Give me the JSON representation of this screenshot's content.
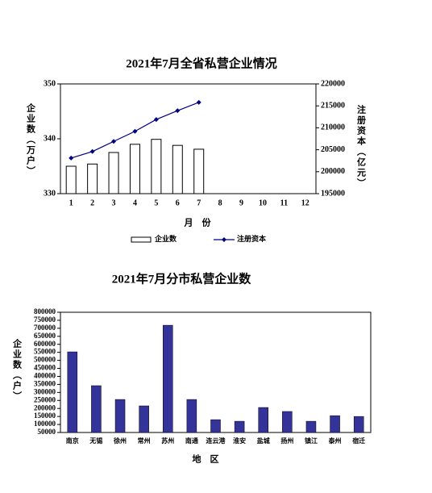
{
  "chart_data": [
    {
      "type": "bar_line",
      "title": "2021年7月全省私营企业情况",
      "categories": [
        "1",
        "2",
        "3",
        "4",
        "5",
        "6",
        "7",
        "8",
        "9",
        "10",
        "11",
        "12"
      ],
      "xlabel": "月　份",
      "ylabel": "企业数（万户）",
      "y2label": "注册资本（亿元）",
      "series": [
        {
          "name": "企业数",
          "type": "bar",
          "color": "#ffffff",
          "values": [
            335.0,
            335.4,
            337.5,
            339.0,
            339.9,
            338.8,
            338.1,
            null,
            null,
            null,
            null,
            null
          ]
        },
        {
          "name": "注册资本",
          "type": "line",
          "axis": "y2",
          "color": "#000080",
          "values": [
            203100,
            204600,
            206900,
            209200,
            211900,
            213900,
            215800,
            null,
            null,
            null,
            null,
            null
          ]
        }
      ],
      "ylim": [
        330,
        350
      ],
      "yticks": [
        330,
        340,
        350
      ],
      "y2lim": [
        195000,
        220000
      ],
      "y2ticks": [
        195000,
        200000,
        205000,
        210000,
        215000,
        220000
      ]
    },
    {
      "type": "bar",
      "title": "2021年7月分市私营企业数",
      "categories": [
        "南京",
        "无锡",
        "徐州",
        "常州",
        "苏州",
        "南通",
        "连云港",
        "淮安",
        "盐城",
        "扬州",
        "镇江",
        "泰州",
        "宿迁"
      ],
      "values": [
        553000,
        342000,
        256000,
        216000,
        719000,
        256000,
        130000,
        120000,
        206000,
        181000,
        120000,
        155000,
        150000
      ],
      "color": "#333399",
      "xlabel": "地　区",
      "ylabel": "企业数（户）",
      "ylim": [
        50000,
        800000
      ],
      "yticks": [
        50000,
        100000,
        150000,
        200000,
        250000,
        300000,
        350000,
        400000,
        450000,
        500000,
        550000,
        600000,
        650000,
        700000,
        750000,
        800000
      ]
    }
  ]
}
